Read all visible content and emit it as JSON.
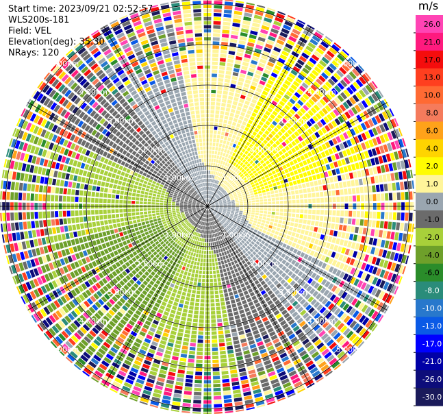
{
  "header": {
    "start_time": "Start time: 2023/09/21 02:52:57",
    "instrument": "WLS200s-181",
    "field": "Field: VEL",
    "elevation": "Elevation(deg): 35.30",
    "nrays": "NRays: 120"
  },
  "colorbar": {
    "unit": "m/s",
    "ticks": [
      "26.0",
      "21.0",
      "17.0",
      "13.0",
      "10.0",
      "8.0",
      "6.0",
      "4.0",
      "2.0",
      "1.0",
      "0.0",
      "-1.0",
      "-2.0",
      "-4.0",
      "-6.0",
      "-8.0",
      "-10.0",
      "-13.0",
      "-17.0",
      "-21.0",
      "-26.0",
      "-30.0"
    ],
    "colors": [
      "#ff44b4",
      "#ff1a7e",
      "#f50d0d",
      "#ff3f1f",
      "#ff6a33",
      "#f57b5c",
      "#ffa21a",
      "#ffd400",
      "#fffc00",
      "#fff59a",
      "#9aa6b0",
      "#6b6b6b",
      "#a8d03a",
      "#6ea02a",
      "#2a8c2a",
      "#2a8c7a",
      "#2878cc",
      "#0a5ae6",
      "#0000ff",
      "#0000a6",
      "#0d0d7a",
      "#1a1a5a"
    ]
  },
  "chart_data": {
    "type": "ppi",
    "title": "WLS200s-181 VEL",
    "field": "VEL",
    "units": "m/s",
    "elevation_deg": 35.3,
    "nrays": 120,
    "range_rings_km": [
      1.0,
      2.0,
      3.0,
      4.0,
      5.0
    ],
    "ring_labels": [
      "1.00km",
      "2.00km",
      "3.00km",
      "4.00km",
      "5.00km"
    ],
    "spokes_deg": [
      0,
      30,
      60,
      90,
      120,
      150,
      180,
      210,
      240,
      270,
      300,
      330
    ],
    "vmin": -30.0,
    "vmax": 30.0,
    "pattern": "positive (receding) velocities toward north/east, negative (approaching) toward south/west, noisy clutter beyond ~3 km"
  }
}
